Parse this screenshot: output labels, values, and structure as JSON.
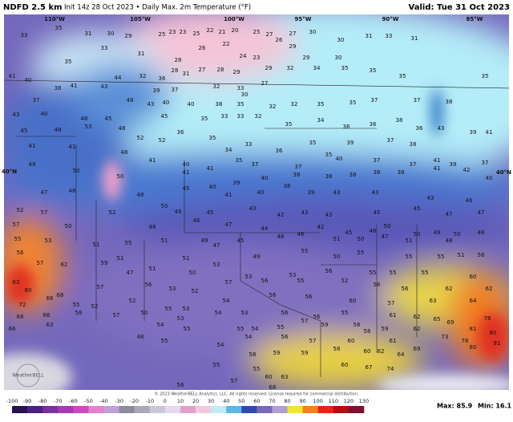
{
  "header": {
    "title": "NDFD 2.5 km",
    "subtitle": "Init 14z 28 Oct 2023 • Daily Max. 2m Temperature (°F)",
    "valid": "Valid: Tue 31 Oct 2023"
  },
  "longitudes": [
    "110°W",
    "105°W",
    "100°W",
    "95°W",
    "90°W",
    "85°W"
  ],
  "latitudes": [
    "40°N",
    "40°N"
  ],
  "temperatures": [
    33,
    35,
    31,
    30,
    29,
    25,
    23,
    23,
    25,
    22,
    21,
    20,
    25,
    27,
    26,
    27,
    30,
    30,
    31,
    33,
    31,
    33,
    31,
    28,
    26,
    22,
    24,
    23,
    29,
    29,
    30,
    35,
    32,
    36,
    28,
    31,
    27,
    28,
    29,
    29,
    32,
    34,
    35,
    35,
    35,
    41,
    40,
    38,
    41,
    43,
    44,
    39,
    37,
    33,
    32,
    27,
    30,
    37,
    48,
    43,
    40,
    40,
    38,
    35,
    32,
    32,
    35,
    35,
    37,
    37,
    38,
    35,
    43,
    40,
    48,
    45,
    45,
    35,
    33,
    33,
    32,
    35,
    34,
    38,
    36,
    38,
    36,
    43,
    39,
    41,
    45,
    48,
    53,
    48,
    52,
    52,
    36,
    35,
    34,
    33,
    36,
    35,
    35,
    39,
    37,
    38,
    41,
    41,
    48,
    41,
    40,
    41,
    35,
    37,
    37,
    40,
    37,
    37,
    41,
    39,
    37,
    49,
    50,
    50,
    41,
    40,
    39,
    40,
    38,
    38,
    38,
    38,
    38,
    41,
    42,
    40,
    47,
    48,
    48,
    45,
    41,
    40,
    38,
    39,
    43,
    43,
    43,
    46,
    52,
    57,
    52,
    50,
    49,
    45,
    43,
    42,
    43,
    43,
    45,
    45,
    47,
    47,
    57,
    50,
    48,
    46,
    47,
    44,
    46,
    42,
    45,
    46,
    50,
    50,
    49,
    50,
    48,
    55,
    53,
    51,
    55,
    51,
    49,
    47,
    45,
    46,
    55,
    51,
    50,
    47,
    51,
    48,
    56,
    62,
    51,
    51,
    49,
    50,
    55,
    55,
    55,
    51,
    56,
    57,
    59,
    47,
    51,
    50,
    53,
    53,
    53,
    56,
    52,
    55,
    55,
    55,
    60,
    63,
    80,
    68,
    57,
    56,
    52,
    57,
    56,
    55,
    56,
    56,
    62,
    62,
    72,
    66,
    55,
    52,
    52,
    53,
    54,
    56,
    56,
    60,
    57,
    63,
    64,
    68,
    66,
    58,
    57,
    50,
    55,
    53,
    54,
    53,
    56,
    56,
    55,
    61,
    62,
    65,
    69,
    78,
    53,
    54,
    55,
    55,
    54,
    55,
    57,
    59,
    58,
    59,
    62,
    73,
    81,
    80,
    66,
    63,
    48,
    55,
    54,
    54,
    56,
    57,
    60,
    58,
    61,
    69,
    78,
    80,
    81,
    55,
    58,
    59,
    59,
    58,
    60,
    62,
    64,
    60,
    67,
    74,
    55,
    60,
    63,
    57,
    56,
    68
  ],
  "colorbar": {
    "ticks": [
      -100,
      -90,
      -80,
      -70,
      -60,
      -50,
      -40,
      -30,
      -20,
      -10,
      0,
      10,
      20,
      30,
      40,
      50,
      60,
      70,
      80,
      90,
      100,
      110,
      120,
      130
    ],
    "colors": [
      "#2a1050",
      "#4a2080",
      "#7a30a0",
      "#a838b8",
      "#d048c0",
      "#e880d0",
      "#c0a0d8",
      "#8c8ca0",
      "#a8a8b8",
      "#c8c8d8",
      "#e8d8ec",
      "#e0a0cc",
      "#f0c8e0",
      "#c0ecf8",
      "#58b8e8",
      "#3048b0",
      "#7868b8",
      "#b0a0d0",
      "#f0e040",
      "#f08020",
      "#e02818",
      "#b01010",
      "#801030"
    ]
  },
  "logo": "WeatherBELL",
  "footer": "© 2023 WeatherBELL Analytics, LLC. All rights reserved. License required for commercial distribution.",
  "max": "Max: 85.9",
  "min": "Min: 16.1"
}
